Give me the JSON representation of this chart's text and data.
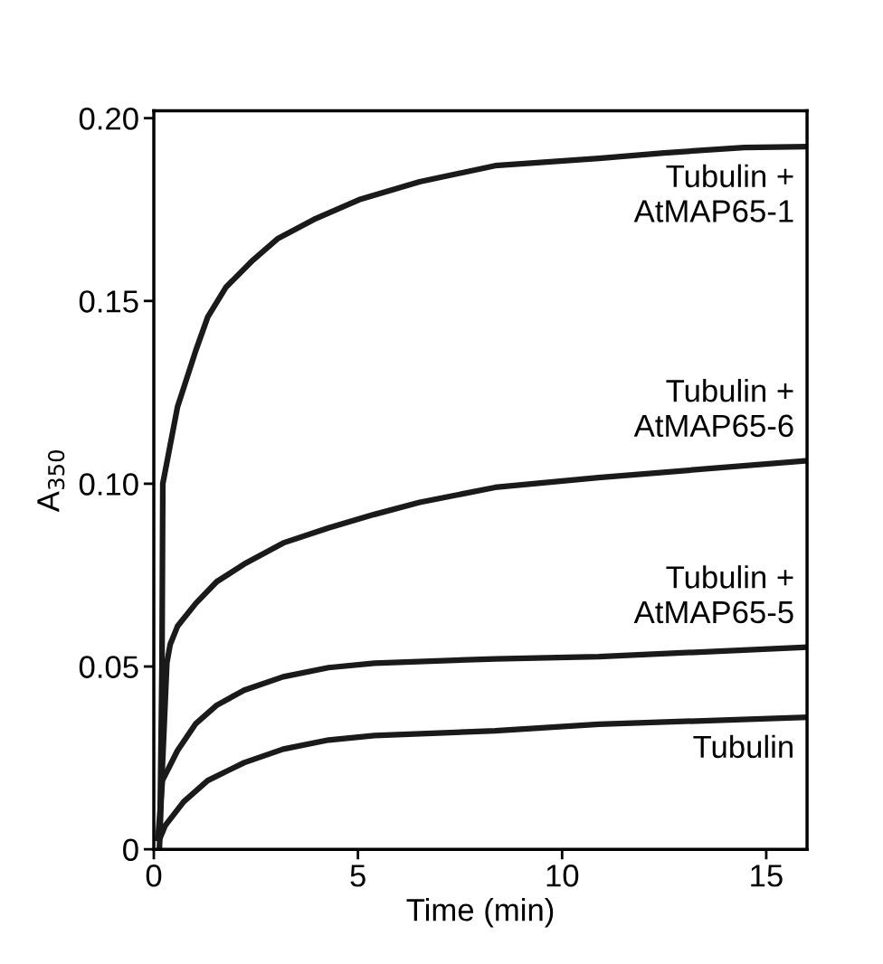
{
  "chart_data": {
    "type": "line",
    "xlabel": "Time (min)",
    "ylabel": "A$_{350}$",
    "xlim": [
      0,
      16
    ],
    "xticks": [
      0,
      5,
      10,
      15
    ],
    "ylim": [
      0,
      0.202
    ],
    "yticks": [
      0,
      0.05,
      {
        "value": 0.1,
        "label": "0.10"
      },
      0.15,
      {
        "value": 0.2,
        "label": "0.20"
      }
    ],
    "grid": false,
    "legend": false,
    "marker": "none",
    "line_style": "solid",
    "series": [
      {
        "name": "Tubulin +\nAtMAP65-1",
        "color": "#1a1a1a",
        "x": [
          0.15,
          0.2,
          0.22,
          0.58,
          1.03,
          1.32,
          1.77,
          2.43,
          3.03,
          3.92,
          5.03,
          6.51,
          8.36,
          10.9,
          12.5,
          14.46,
          16
        ],
        "values": [
          0.005,
          0.05,
          0.1,
          0.121,
          0.1365,
          0.1456,
          0.1538,
          0.1612,
          0.167,
          0.1723,
          0.1777,
          0.1826,
          0.187,
          0.189,
          0.1905,
          0.192,
          0.1922
        ]
      },
      {
        "name": "Tubulin +\nAtMAP65-6",
        "color": "#1a1a1a",
        "x": [
          0.14,
          0.2,
          0.32,
          0.4,
          0.58,
          1.03,
          1.54,
          2.21,
          3.17,
          4.28,
          5.4,
          6.51,
          8.36,
          10.89,
          16
        ],
        "values": [
          0.001,
          0.02,
          0.051,
          0.056,
          0.061,
          0.0673,
          0.0732,
          0.078,
          0.0838,
          0.0879,
          0.0916,
          0.0949,
          0.099,
          0.1017,
          0.1063
        ]
      },
      {
        "name": "Tubulin +\nAtMAP65-5",
        "color": "#1a1a1a",
        "x": [
          0.1,
          0.15,
          0.21,
          0.58,
          1.03,
          1.54,
          2.21,
          3.17,
          4.28,
          5.4,
          8.36,
          10.9,
          16
        ],
        "values": [
          0.003,
          0.01,
          0.0188,
          0.027,
          0.0344,
          0.0394,
          0.0435,
          0.0472,
          0.0497,
          0.0509,
          0.0521,
          0.0527,
          0.0553
        ]
      },
      {
        "name": "Tubulin",
        "color": "#1a1a1a",
        "x": [
          0.15,
          0.28,
          0.73,
          1.32,
          2.21,
          3.17,
          4.28,
          5.4,
          8.36,
          10.9,
          16
        ],
        "values": [
          0.003,
          0.0065,
          0.013,
          0.0188,
          0.0237,
          0.0274,
          0.0299,
          0.0311,
          0.0324,
          0.0342,
          0.0361
        ]
      }
    ]
  }
}
